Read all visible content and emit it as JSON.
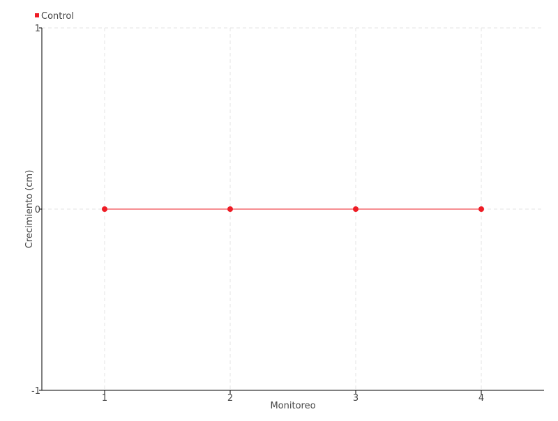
{
  "chart_data": {
    "type": "line",
    "title": "",
    "xlabel": "Monitoreo",
    "ylabel": "Crecimiento (cm)",
    "x": [
      1,
      2,
      3,
      4
    ],
    "xlim": [
      0.5,
      4.5
    ],
    "ylim": [
      -1,
      1
    ],
    "xticks": [
      "1",
      "2",
      "3",
      "4"
    ],
    "yticks": [
      "-1",
      "0",
      "1"
    ],
    "ytick_values": [
      -1,
      0,
      1
    ],
    "grid": true,
    "legend_position": "top-left",
    "series": [
      {
        "name": "Control",
        "values": [
          0,
          0,
          0,
          0
        ],
        "color": "#ee1c25"
      }
    ]
  }
}
